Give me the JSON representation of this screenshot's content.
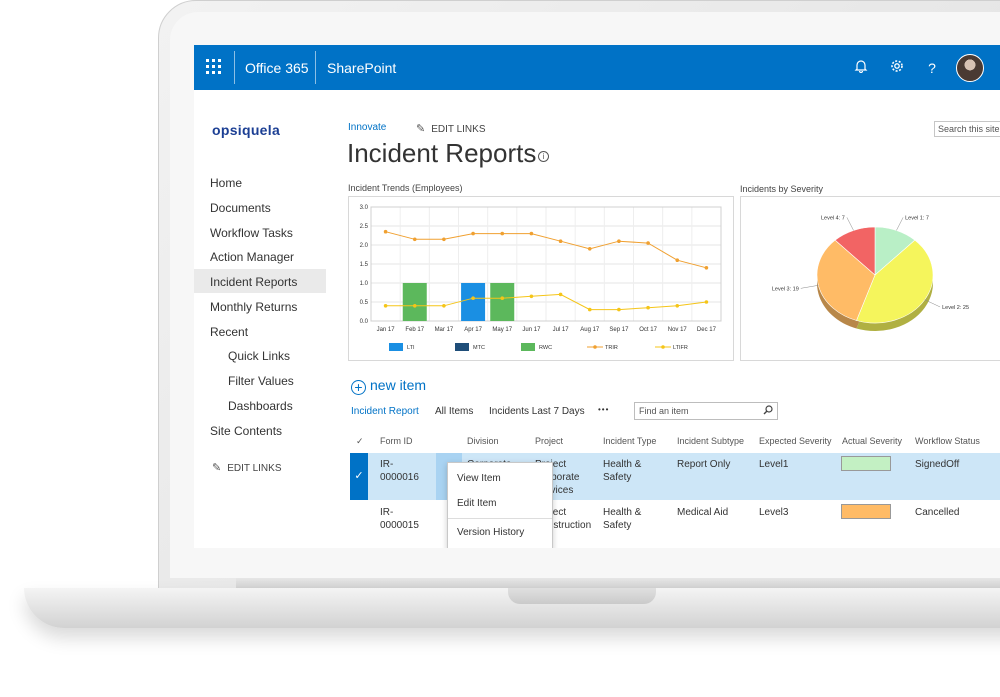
{
  "suitebar": {
    "app_name": "Office 365",
    "site_name": "SharePoint",
    "colors": {
      "background": "#0072c6",
      "text": "#ffffff"
    },
    "icons": [
      "app-launcher-icon",
      "bell-icon",
      "gear-icon",
      "help-icon",
      "user-avatar"
    ]
  },
  "sidebar": {
    "logo": "opsiquela",
    "items": [
      {
        "label": "Home"
      },
      {
        "label": "Documents"
      },
      {
        "label": "Workflow Tasks"
      },
      {
        "label": "Action Manager"
      },
      {
        "label": "Incident Reports",
        "selected": true
      },
      {
        "label": "Monthly Returns"
      },
      {
        "label": "Recent"
      },
      {
        "label": "Quick Links"
      },
      {
        "label": "Filter Values"
      },
      {
        "label": "Dashboards"
      },
      {
        "label": "Site Contents"
      }
    ],
    "edit_links": "EDIT LINKS"
  },
  "header": {
    "breadcrumb": "Innovate",
    "edit_links": "EDIT LINKS",
    "search_placeholder": "Search this site",
    "title": "Incident Reports"
  },
  "charts": {
    "trends_title": "Incident Trends (Employees)",
    "severity_title": "Incidents by Severity"
  },
  "chart_data": [
    {
      "type": "bar",
      "title": "Incident Trends (Employees)",
      "categories": [
        "Jan 17",
        "Feb 17",
        "Mar 17",
        "Apr 17",
        "May 17",
        "Jun 17",
        "Jul 17",
        "Aug 17",
        "Sep 17",
        "Oct 17",
        "Nov 17",
        "Dec 17"
      ],
      "ylim": [
        0,
        3
      ],
      "yticks": [
        "0.0",
        "0.5",
        "1.0",
        "1.5",
        "2.0",
        "2.5",
        "3.0"
      ],
      "grid": true,
      "legend_position": "bottom",
      "series": [
        {
          "name": "LTI",
          "kind": "bar",
          "color": "#1a8fe3",
          "values": [
            0,
            0,
            0,
            1,
            0,
            0,
            0,
            0,
            0,
            0,
            0,
            0
          ]
        },
        {
          "name": "MTC",
          "kind": "bar",
          "color": "#1f4e79",
          "values": [
            0,
            0,
            0,
            0,
            0,
            0,
            0,
            0,
            0,
            0,
            0,
            0
          ]
        },
        {
          "name": "RWC",
          "kind": "bar",
          "color": "#5cb85c",
          "values": [
            0,
            1,
            0,
            0,
            1,
            0,
            0,
            0,
            0,
            0,
            0,
            0
          ]
        },
        {
          "name": "TRIR",
          "kind": "line",
          "color": "#f0a030",
          "values": [
            2.35,
            2.15,
            2.15,
            2.3,
            2.3,
            2.3,
            2.1,
            1.9,
            2.1,
            2.05,
            1.6,
            1.4
          ]
        },
        {
          "name": "LTIFR",
          "kind": "line",
          "color": "#f5c518",
          "values": [
            0.4,
            0.4,
            0.4,
            0.6,
            0.6,
            0.65,
            0.7,
            0.3,
            0.3,
            0.35,
            0.4,
            0.5
          ]
        }
      ]
    },
    {
      "type": "pie",
      "title": "Incidents by Severity",
      "slices": [
        {
          "label": "Level 1: 7",
          "value": 7,
          "color": "#b9efc6"
        },
        {
          "label": "Level 2: 25",
          "value": 25,
          "color": "#f5f55c"
        },
        {
          "label": "Level 3: 19",
          "value": 19,
          "color": "#ffbb66"
        },
        {
          "label": "Level 4: 7",
          "value": 7,
          "color": "#f26464"
        }
      ]
    }
  ],
  "list": {
    "new_item": "new item",
    "views": [
      "Incident Report",
      "All Items",
      "Incidents Last 7 Days"
    ],
    "more": "•••",
    "find_placeholder": "Find an item",
    "columns": [
      "Form ID",
      "Division",
      "Project",
      "Incident Type",
      "Incident Subtype",
      "Expected Severity",
      "Actual Severity",
      "Workflow Status"
    ],
    "rows": [
      {
        "id_line1": "IR-",
        "id_line2": "0000016",
        "division": "Corporate",
        "project_line1": "Project",
        "project_line2": "Corporate",
        "project_line3": "Services",
        "type_line1": "Health &",
        "type_line2": "Safety",
        "subtype": "Report Only",
        "expected": "Level1",
        "actual_color": "#c3f0c3",
        "status": "SignedOff",
        "selected": true
      },
      {
        "id_line1": "IR-",
        "id_line2": "0000015",
        "division": "",
        "project_line1": "Project",
        "project_line2": "Construction",
        "project_line3": "",
        "type_line1": "Health &",
        "type_line2": "Safety",
        "subtype": "Medical Aid",
        "expected": "Level3",
        "actual_color": "#ffbb66",
        "status": "Cancelled",
        "selected": false
      }
    ]
  },
  "context_menu": {
    "items": [
      "View Item",
      "Edit Item",
      "Version History"
    ]
  }
}
